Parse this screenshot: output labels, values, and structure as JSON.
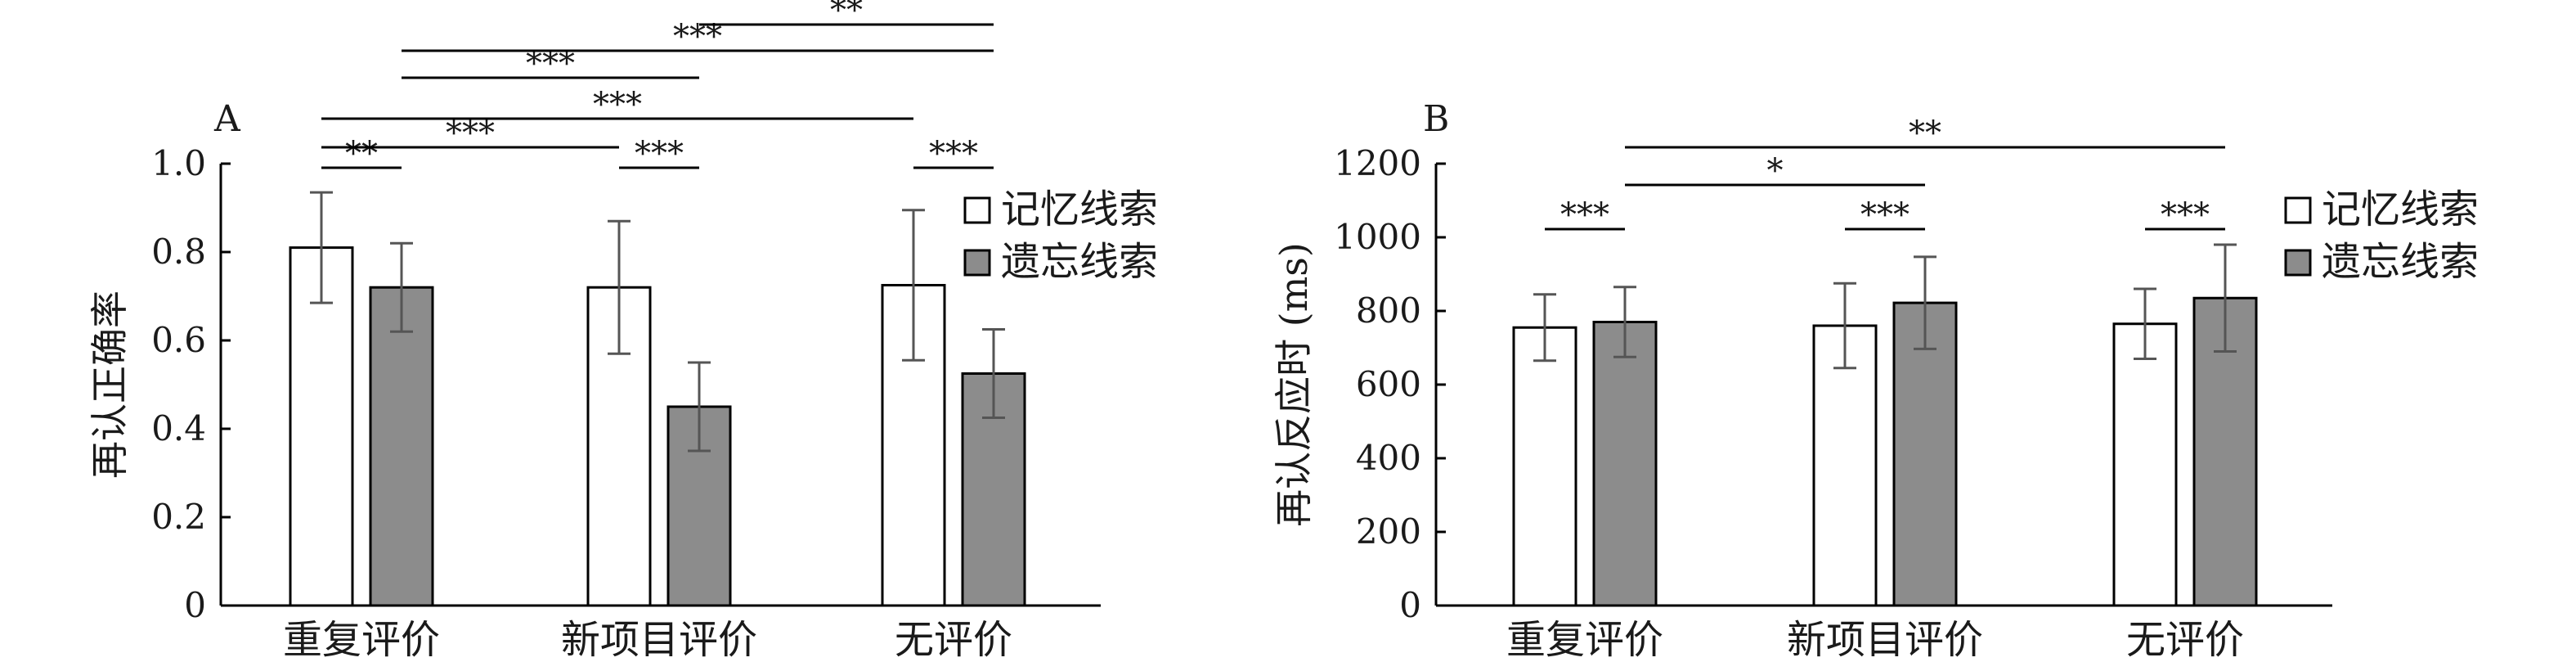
{
  "chart_data": [
    {
      "panel": "A",
      "type": "bar",
      "ylabel": "再认正确率",
      "ylim": [
        0,
        1.0
      ],
      "yticks": [
        "0",
        "0.2",
        "0.4",
        "0.6",
        "0.8",
        "1.0"
      ],
      "categories": [
        "重复评价",
        "新项目评价",
        "无评价"
      ],
      "series": [
        {
          "name": "记忆线索",
          "values": [
            0.81,
            0.72,
            0.725
          ],
          "errors": [
            0.125,
            0.15,
            0.17
          ],
          "color": "#ffffff"
        },
        {
          "name": "遗忘线索",
          "values": [
            0.72,
            0.45,
            0.525
          ],
          "errors": [
            0.1,
            0.1,
            0.1
          ],
          "color": "#8c8c8c"
        }
      ],
      "legend": "right",
      "significance": [
        {
          "label": "**",
          "from": "重复评价/记忆线索",
          "to": "重复评价/遗忘线索"
        },
        {
          "label": "***",
          "from": "新项目评价/记忆线索",
          "to": "新项目评价/遗忘线索"
        },
        {
          "label": "***",
          "from": "无评价/记忆线索",
          "to": "无评价/遗忘线索"
        },
        {
          "label": "***",
          "from": "重复评价/记忆线索",
          "to": "新项目评价/记忆线索"
        },
        {
          "label": "***",
          "from": "重复评价/记忆线索",
          "to": "无评价/记忆线索"
        },
        {
          "label": "***",
          "from": "重复评价/遗忘线索",
          "to": "新项目评价/遗忘线索"
        },
        {
          "label": "***",
          "from": "重复评价/遗忘线索",
          "to": "无评价/遗忘线索"
        },
        {
          "label": "**",
          "from": "新项目评价/遗忘线索",
          "to": "无评价/遗忘线索"
        }
      ]
    },
    {
      "panel": "B",
      "type": "bar",
      "ylabel": "再认反应时 (ms)",
      "ylim": [
        0,
        1200
      ],
      "yticks": [
        "0",
        "200",
        "400",
        "600",
        "800",
        "1000",
        "1200"
      ],
      "categories": [
        "重复评价",
        "新项目评价",
        "无评价"
      ],
      "series": [
        {
          "name": "记忆线索",
          "values": [
            755,
            760,
            765
          ],
          "errors": [
            90,
            115,
            95
          ],
          "color": "#ffffff"
        },
        {
          "name": "遗忘线索",
          "values": [
            770,
            822,
            835
          ],
          "errors": [
            95,
            125,
            145
          ],
          "color": "#8c8c8c"
        }
      ],
      "legend": "right",
      "significance": [
        {
          "label": "***",
          "from": "重复评价/记忆线索",
          "to": "重复评价/遗忘线索"
        },
        {
          "label": "***",
          "from": "新项目评价/记忆线索",
          "to": "新项目评价/遗忘线索"
        },
        {
          "label": "***",
          "from": "无评价/记忆线索",
          "to": "无评价/遗忘线索"
        },
        {
          "label": "*",
          "from": "重复评价/遗忘线索",
          "to": "新项目评价/遗忘线索"
        },
        {
          "label": "**",
          "from": "重复评价/遗忘线索",
          "to": "无评价/遗忘线索"
        }
      ]
    }
  ]
}
